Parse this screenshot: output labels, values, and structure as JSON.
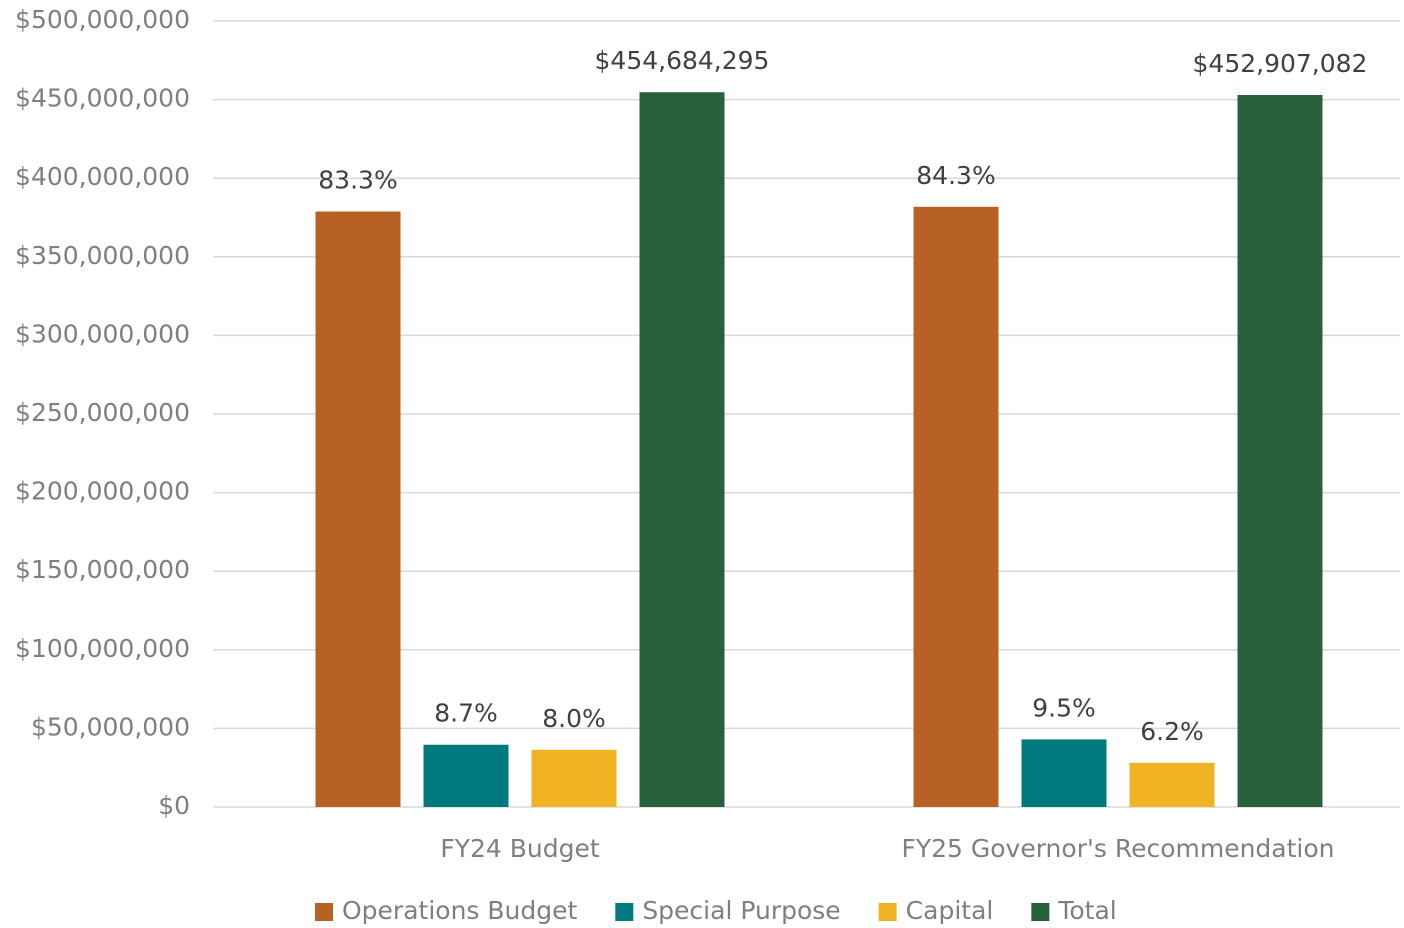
{
  "chart_data": {
    "type": "bar",
    "categories": [
      "FY24 Budget",
      "FY25 Governor's Recommendation"
    ],
    "series": [
      {
        "name": "Operations Budget",
        "color": "#B86125",
        "values": [
          378800000,
          381800000
        ],
        "share_labels": [
          "83.3%",
          "84.3%"
        ]
      },
      {
        "name": "Special Purpose",
        "color": "#007A7E",
        "values": [
          39600000,
          43000000
        ],
        "share_labels": [
          "8.7%",
          "9.5%"
        ]
      },
      {
        "name": "Capital",
        "color": "#F0B323",
        "values": [
          36400000,
          28100000
        ],
        "share_labels": [
          "8.0%",
          "6.2%"
        ]
      },
      {
        "name": "Total",
        "color": "#27603B",
        "values": [
          454684295,
          452907082
        ],
        "value_labels": [
          "$454,684,295",
          "$452,907,082"
        ]
      }
    ],
    "ylim": [
      0,
      500000000
    ],
    "yticks": [
      {
        "value": 0,
        "label": "$0"
      },
      {
        "value": 50000000,
        "label": "$50,000,000"
      },
      {
        "value": 100000000,
        "label": "$100,000,000"
      },
      {
        "value": 150000000,
        "label": "$150,000,000"
      },
      {
        "value": 200000000,
        "label": "$200,000,000"
      },
      {
        "value": 250000000,
        "label": "$250,000,000"
      },
      {
        "value": 300000000,
        "label": "$300,000,000"
      },
      {
        "value": 350000000,
        "label": "$350,000,000"
      },
      {
        "value": 400000000,
        "label": "$400,000,000"
      },
      {
        "value": 450000000,
        "label": "$450,000,000"
      },
      {
        "value": 500000000,
        "label": "$500,000,000"
      }
    ],
    "grid": true,
    "legend": "bottom"
  }
}
